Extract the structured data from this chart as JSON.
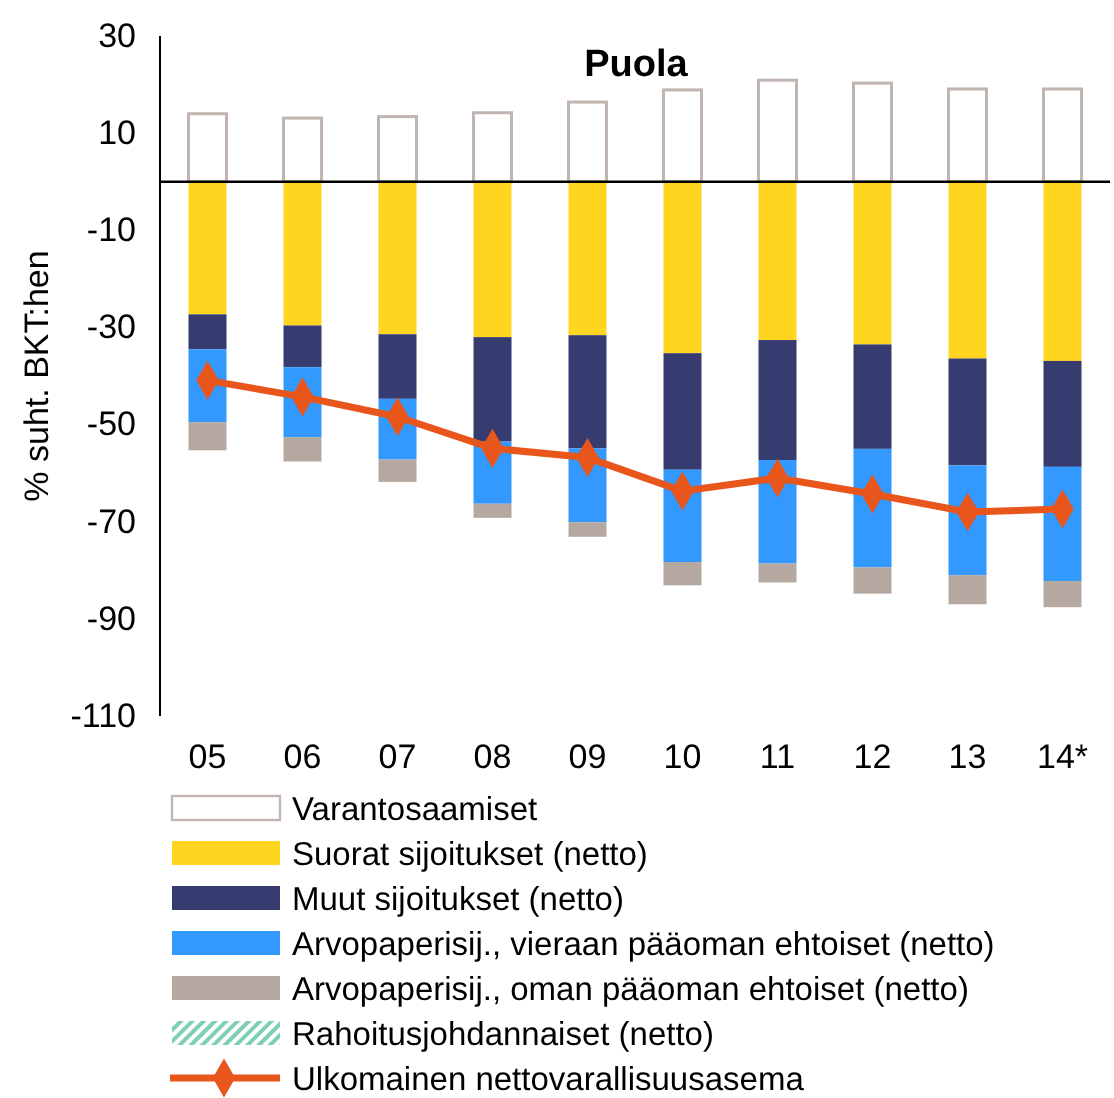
{
  "chart_data": {
    "type": "bar",
    "title": "Puola",
    "ylabel": "% suht. BKT:hen",
    "stacked": true,
    "legend": "bottom",
    "categories": [
      "05",
      "06",
      "07",
      "08",
      "09",
      "10",
      "11",
      "12",
      "13",
      "14*"
    ],
    "ylim": [
      -110,
      30
    ],
    "yticks": [
      -110,
      -90,
      -70,
      -50,
      -30,
      -10,
      10,
      30
    ],
    "series": [
      {
        "name": "Varantosaamiset",
        "color": "#ffffff",
        "values": [
          14.0,
          13.1,
          13.4,
          14.2,
          16.4,
          18.9,
          20.9,
          20.3,
          19.1,
          19.1
        ]
      },
      {
        "name": "Suorat sijoitukset (netto)",
        "color": "#ffd520",
        "values": [
          -27.3,
          -29.6,
          -31.4,
          -32.0,
          -31.6,
          -35.3,
          -32.6,
          -33.5,
          -36.4,
          -36.9
        ]
      },
      {
        "name": "Muut sijoitukset (netto)",
        "color": "#363b70",
        "values": [
          -7.2,
          -8.6,
          -13.3,
          -21.5,
          -23.3,
          -24.0,
          -24.7,
          -21.5,
          -22.0,
          -21.8
        ]
      },
      {
        "name": "Arvopaperisij., vieraan pääoman ehtoiset (netto)",
        "color": "#3399ff",
        "values": [
          -15.0,
          -14.4,
          -12.5,
          -12.8,
          -15.2,
          -19.0,
          -21.3,
          -24.4,
          -22.6,
          -23.5
        ]
      },
      {
        "name": "Arvopaperisij., oman pääoman ehtoiset (netto)",
        "color": "#b5a8a0",
        "values": [
          -5.8,
          -5.0,
          -4.6,
          -2.9,
          -3.0,
          -4.8,
          -3.9,
          -5.4,
          -6.0,
          -5.4
        ]
      },
      {
        "name": "Rahoitusjohdannaiset (netto)",
        "color": "#7fd0b0",
        "values": [
          0,
          0,
          0,
          0,
          0,
          0,
          0,
          0,
          0,
          0
        ]
      },
      {
        "name": "Ulkomainen nettovarallisuusasema",
        "type": "line",
        "color": "#e8561c",
        "marker": "diamond",
        "values": [
          -40.9,
          -44.3,
          -48.4,
          -54.9,
          -56.8,
          -63.7,
          -61.0,
          -64.3,
          -68.0,
          -67.4
        ]
      }
    ]
  }
}
